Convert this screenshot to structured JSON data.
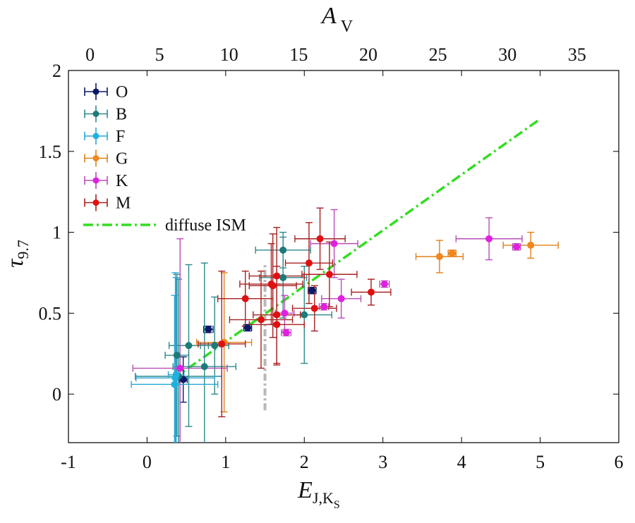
{
  "chart_data": {
    "type": "scatter",
    "title": "",
    "xlabel": {
      "main": "E",
      "sub": "J,K",
      "subsub": "S"
    },
    "ylabel": {
      "main": "τ",
      "sub": "9.7"
    },
    "x2label": {
      "main": "A",
      "sub": "V"
    },
    "xlim": [
      -1,
      6
    ],
    "ylim": [
      -0.3,
      2
    ],
    "x2lim": [
      -1.55,
      38.0
    ],
    "xticks": [
      -1,
      0,
      1,
      2,
      3,
      4,
      5,
      6
    ],
    "yticks": [
      0,
      0.5,
      1,
      1.5,
      2
    ],
    "x2ticks": [
      0,
      5,
      10,
      15,
      20,
      25,
      30,
      35
    ],
    "grid": false,
    "legend": "top-left",
    "series": [
      {
        "name": "O",
        "color": "#0b1a66",
        "errcolor": "#0b1a66",
        "points": [
          {
            "x": 0.78,
            "y": 0.4,
            "xerr": 0.06,
            "yerr": 0.02
          },
          {
            "x": 1.28,
            "y": 0.41,
            "xerr": 0.05,
            "yerr": 0.02
          },
          {
            "x": 2.1,
            "y": 0.64,
            "xerr": 0.05,
            "yerr": 0.02
          },
          {
            "x": 0.46,
            "y": 0.09,
            "xerr": 0.05,
            "yerr": 0.14
          }
        ]
      },
      {
        "name": "B",
        "color": "#1f7a7a",
        "errcolor": "#2e8a8a",
        "points": [
          {
            "x": 1.73,
            "y": 0.89,
            "xerr": 0.35,
            "yerr": 0.11
          },
          {
            "x": 1.73,
            "y": 0.72,
            "xerr": 0.3,
            "yerr": 0.25
          },
          {
            "x": 2.0,
            "y": 0.49,
            "xerr": 0.35,
            "yerr": 0.3
          },
          {
            "x": 0.86,
            "y": 0.3,
            "xerr": 0.18,
            "yerr": 0.3
          },
          {
            "x": 0.53,
            "y": 0.3,
            "xerr": 0.25,
            "yerr": 0.5
          },
          {
            "x": 0.73,
            "y": 0.17,
            "xerr": 0.4,
            "yerr": 0.64
          },
          {
            "x": 0.38,
            "y": 0.24,
            "xerr": 0.15,
            "yerr": 0.5
          },
          {
            "x": 0.4,
            "y": 0.11,
            "xerr": 0.55,
            "yerr": 0.6
          }
        ]
      },
      {
        "name": "F",
        "color": "#1fb0e0",
        "errcolor": "#2aa6d6",
        "points": [
          {
            "x": 0.36,
            "y": 0.1,
            "xerr": 0.5,
            "yerr": 0.65
          },
          {
            "x": 0.35,
            "y": 0.06,
            "xerr": 0.55,
            "yerr": 0.55
          },
          {
            "x": 0.37,
            "y": 0.12,
            "xerr": 0.1,
            "yerr": 0.6
          }
        ]
      },
      {
        "name": "G",
        "color": "#f0861f",
        "errcolor": "#e0801a",
        "points": [
          {
            "x": 3.72,
            "y": 0.85,
            "xerr": 0.3,
            "yerr": 0.1
          },
          {
            "x": 3.88,
            "y": 0.87,
            "xerr": 0.05,
            "yerr": 0.02
          },
          {
            "x": 4.88,
            "y": 0.92,
            "xerr": 0.35,
            "yerr": 0.08
          },
          {
            "x": 0.98,
            "y": 0.32,
            "xerr": 0.35,
            "yerr": 0.43
          }
        ]
      },
      {
        "name": "K",
        "color": "#e020e0",
        "errcolor": "#b84db8",
        "points": [
          {
            "x": 4.35,
            "y": 0.96,
            "xerr": 0.42,
            "yerr": 0.13
          },
          {
            "x": 4.7,
            "y": 0.91,
            "xerr": 0.05,
            "yerr": 0.02
          },
          {
            "x": 2.38,
            "y": 0.93,
            "xerr": 0.3,
            "yerr": 0.21
          },
          {
            "x": 3.02,
            "y": 0.68,
            "xerr": 0.06,
            "yerr": 0.02
          },
          {
            "x": 2.47,
            "y": 0.59,
            "xerr": 0.25,
            "yerr": 0.12
          },
          {
            "x": 2.25,
            "y": 0.54,
            "xerr": 0.06,
            "yerr": 0.02
          },
          {
            "x": 1.75,
            "y": 0.5,
            "xerr": 0.12,
            "yerr": 0.11
          },
          {
            "x": 1.77,
            "y": 0.38,
            "xerr": 0.06,
            "yerr": 0.02
          },
          {
            "x": 0.42,
            "y": 0.16,
            "xerr": 0.6,
            "yerr": 0.8
          }
        ]
      },
      {
        "name": "M",
        "color": "#e01010",
        "errcolor": "#a82020",
        "points": [
          {
            "x": 2.2,
            "y": 0.96,
            "xerr": 0.32,
            "yerr": 0.19
          },
          {
            "x": 2.06,
            "y": 0.81,
            "xerr": 0.3,
            "yerr": 0.25
          },
          {
            "x": 2.32,
            "y": 0.74,
            "xerr": 0.35,
            "yerr": 0.2
          },
          {
            "x": 1.65,
            "y": 0.73,
            "xerr": 0.35,
            "yerr": 0.3
          },
          {
            "x": 1.58,
            "y": 0.68,
            "xerr": 0.4,
            "yerr": 0.25
          },
          {
            "x": 1.6,
            "y": 0.67,
            "xerr": 0.3,
            "yerr": 0.32
          },
          {
            "x": 2.85,
            "y": 0.63,
            "xerr": 0.25,
            "yerr": 0.08
          },
          {
            "x": 1.25,
            "y": 0.59,
            "xerr": 0.35,
            "yerr": 0.17
          },
          {
            "x": 2.13,
            "y": 0.53,
            "xerr": 0.28,
            "yerr": 0.14
          },
          {
            "x": 1.65,
            "y": 0.49,
            "xerr": 0.3,
            "yerr": 0.3
          },
          {
            "x": 1.45,
            "y": 0.46,
            "xerr": 0.4,
            "yerr": 0.3
          },
          {
            "x": 1.65,
            "y": 0.43,
            "xerr": 0.35,
            "yerr": 0.25
          },
          {
            "x": 0.95,
            "y": 0.31,
            "xerr": 0.3,
            "yerr": 0.45
          }
        ]
      }
    ],
    "reference_line": {
      "name": "diffuse ISM",
      "color": "#33dd22",
      "style": "dash-dot",
      "x": [
        0.32,
        5.0
      ],
      "y": [
        0.09,
        1.7
      ]
    },
    "gray_line": {
      "color": "#b8b8b8",
      "x": [
        1.5,
        1.5
      ],
      "y": [
        -0.1,
        0.8
      ]
    }
  }
}
